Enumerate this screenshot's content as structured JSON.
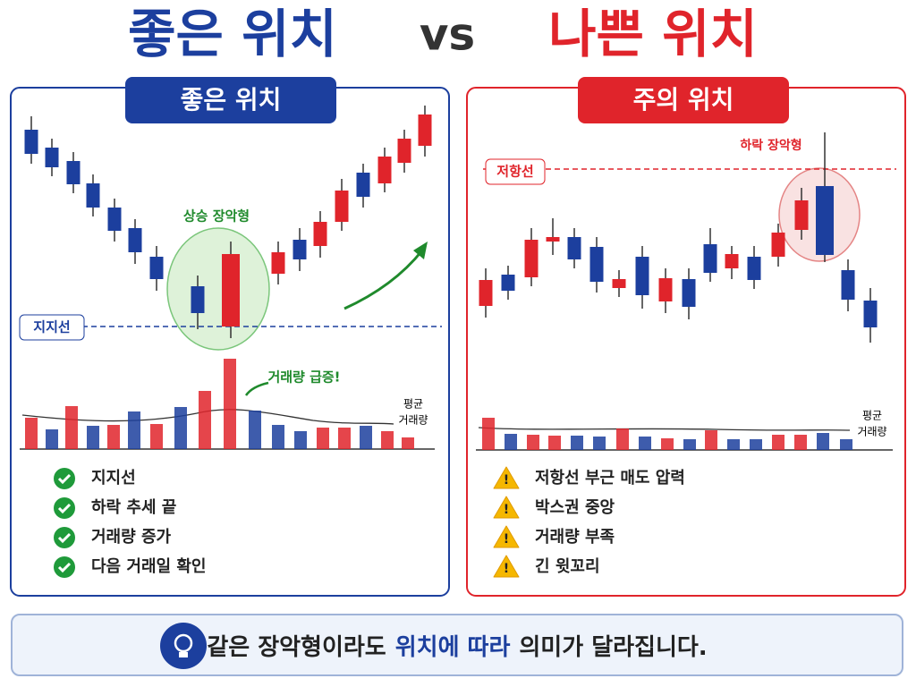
{
  "title": {
    "good": "좋은 위치",
    "vs": "vs",
    "bad": "나쁜 위치"
  },
  "left": {
    "header": "좋은 위치",
    "pattern_label": "상승 장악형",
    "support_label": "지지선",
    "volume_note": "거래량 급증!",
    "avg_volume": [
      "평균",
      "거래량"
    ],
    "checklist": [
      "지지선",
      "하락 추세 끝",
      "거래량 증가",
      "다음 거래일 확인"
    ]
  },
  "right": {
    "header": "주의 위치",
    "pattern_label": "하락 장악형",
    "resistance_label": "저항선",
    "avg_volume": [
      "평균",
      "거래량"
    ],
    "warnings": [
      "저항선 부근 매도 압력",
      "박스권 중앙",
      "거래량 부족",
      "긴 윗꼬리"
    ]
  },
  "footer": {
    "parts": [
      "같은 장악형이라도",
      "위치에 따라",
      "의미가 달라집니다."
    ]
  }
}
